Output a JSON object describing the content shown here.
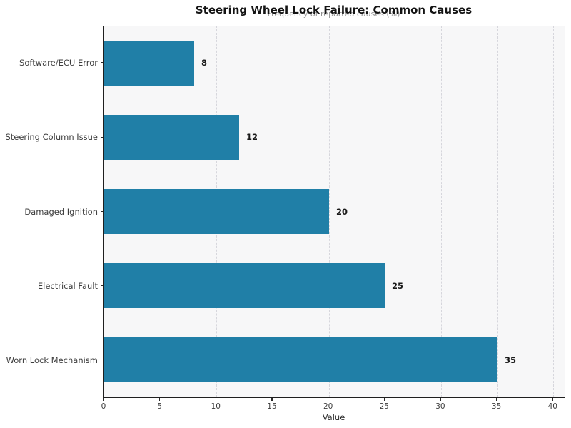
{
  "chart_data": {
    "type": "bar",
    "orientation": "horizontal",
    "title": "Steering Wheel Lock Failure: Common Causes",
    "subtitle": "Frequency of reported causes (%)",
    "categories": [
      "Software/ECU Error",
      "Steering Column Issue",
      "Damaged Ignition",
      "Electrical Fault",
      "Worn Lock Mechanism"
    ],
    "values": [
      8,
      12,
      20,
      25,
      35
    ],
    "value_labels": [
      "8",
      "12",
      "20",
      "25",
      "35"
    ],
    "xlabel": "Value",
    "ylabel": "",
    "xlim": [
      0,
      41
    ],
    "xticks": [
      0,
      5,
      10,
      15,
      20,
      25,
      30,
      35,
      40
    ],
    "grid": "vertical-dashed",
    "legend": "none",
    "bar_color": "#207FA7",
    "plot_background": "#f7f7f8",
    "gridline_color": "#d6d6dc",
    "subtitle_color": "#8f8f8f"
  }
}
